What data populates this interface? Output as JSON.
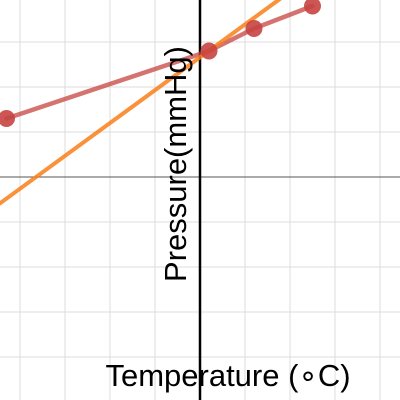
{
  "chart_data": {
    "type": "line",
    "xlabel": "Temperature (∘C)",
    "ylabel": "Pressure(mmHg)",
    "grid": true,
    "series": [
      {
        "color": "#c74440",
        "points": [
          {
            "x": -4.3,
            "y": 5.3
          },
          {
            "x": 0.2,
            "y": 6.8
          },
          {
            "x": 1.2,
            "y": 7.3
          },
          {
            "x": 2.5,
            "y": 7.8
          }
        ]
      }
    ],
    "fit_line": {
      "color": "#fa7e19",
      "slope": 0.73,
      "intercept": 6.66
    }
  }
}
